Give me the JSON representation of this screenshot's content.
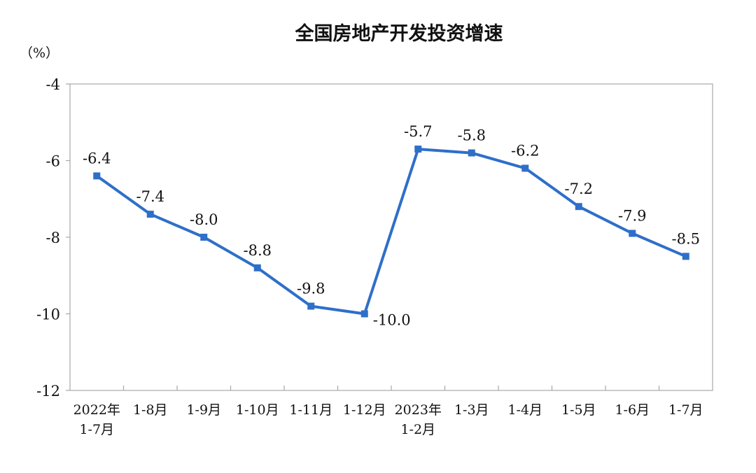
{
  "chart_data": {
    "type": "line",
    "title": "全国房地产开发投资增速",
    "ylabel": "（%）",
    "xlabel": "",
    "ylim": [
      -12,
      -4
    ],
    "yticks": [
      -4,
      -6,
      -8,
      -10,
      -12
    ],
    "grid": false,
    "categories": [
      [
        "2022年",
        "1-7月"
      ],
      [
        "1-8月"
      ],
      [
        "1-9月"
      ],
      [
        "1-10月"
      ],
      [
        "1-11月"
      ],
      [
        "1-12月"
      ],
      [
        "2023年",
        "1-2月"
      ],
      [
        "1-3月"
      ],
      [
        "1-4月"
      ],
      [
        "1-5月"
      ],
      [
        "1-6月"
      ],
      [
        "1-7月"
      ]
    ],
    "series": [
      {
        "values": [
          -6.4,
          -7.4,
          -8.0,
          -8.8,
          -9.8,
          -10.0,
          -5.7,
          -5.8,
          -6.2,
          -7.2,
          -7.9,
          -8.5
        ],
        "labels": [
          "-6.4",
          "-7.4",
          "-8.0",
          "-8.8",
          "-9.8",
          "-10.0",
          "-5.7",
          "-5.8",
          "-6.2",
          "-7.2",
          "-7.9",
          "-8.5"
        ],
        "color": "#2e6fc9"
      }
    ]
  }
}
